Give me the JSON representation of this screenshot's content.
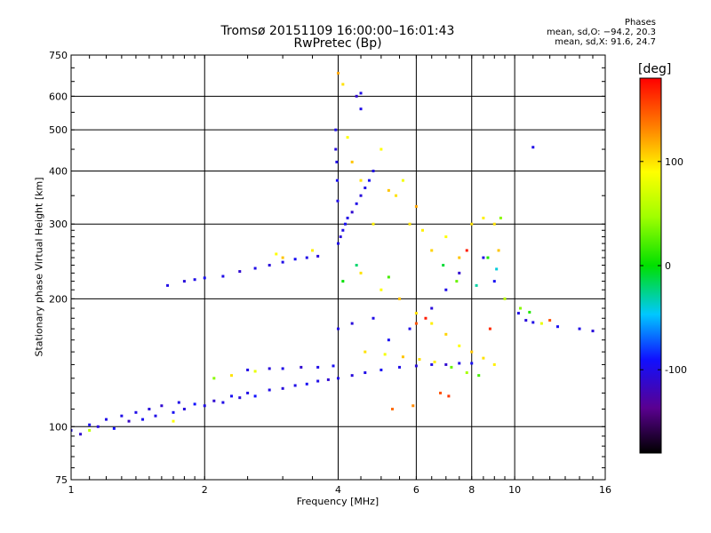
{
  "title_line1": "Tromsø 20151109 16:00:00–16:01:43",
  "title_line2": "RwPretec (Bp)",
  "phase_box": {
    "heading": "Phases",
    "line_o": "mean, sd,O: −94.2, 20.3",
    "line_x": "mean, sd,X:  91.6, 24.7"
  },
  "colorbar": {
    "unit": "[deg]",
    "ticks": [
      {
        "value": 100,
        "label": "100"
      },
      {
        "value": 0,
        "label": "0"
      },
      {
        "value": -100,
        "label": "-100"
      }
    ],
    "range": [
      -180,
      180
    ]
  },
  "chart_data": {
    "type": "scatter",
    "title": "Tromsø 20151109 16:00:00–16:01:43",
    "subtitle": "RwPretec (Bp)",
    "xlabel": "Frequency [MHz]",
    "ylabel": "Stationary phase Virtual Height [km]",
    "x_scale": "log",
    "y_scale": "log",
    "xlim": [
      1,
      16
    ],
    "ylim": [
      75,
      750
    ],
    "xticks": [
      1,
      2,
      4,
      6,
      8,
      10,
      16
    ],
    "xtick_labels": [
      "1",
      "2",
      "4",
      "6",
      "8",
      "10",
      "16"
    ],
    "yticks": [
      75,
      100,
      200,
      300,
      400,
      500,
      600,
      750
    ],
    "ytick_labels": [
      "75",
      "100",
      "200",
      "300",
      "400",
      "500",
      "600",
      "750"
    ],
    "x_gridlines": [
      2,
      4,
      6,
      8,
      10
    ],
    "y_gridlines": [
      100,
      200,
      300,
      400,
      500,
      600
    ],
    "color_variable": "phase [deg]",
    "color_range": [
      -180,
      180
    ],
    "series": [
      {
        "mode": "O",
        "mean_phase": -94.2,
        "points": [
          [
            1.0,
            98,
            -100
          ],
          [
            1.05,
            96,
            -110
          ],
          [
            1.1,
            101,
            -95
          ],
          [
            1.15,
            100,
            -105
          ],
          [
            1.2,
            104,
            -100
          ],
          [
            1.25,
            99,
            -90
          ],
          [
            1.3,
            106,
            -100
          ],
          [
            1.35,
            103,
            -115
          ],
          [
            1.4,
            108,
            -100
          ],
          [
            1.45,
            104,
            -95
          ],
          [
            1.5,
            110,
            -105
          ],
          [
            1.55,
            106,
            -100
          ],
          [
            1.6,
            112,
            -110
          ],
          [
            1.7,
            108,
            -95
          ],
          [
            1.75,
            114,
            -100
          ],
          [
            1.8,
            110,
            -105
          ],
          [
            1.9,
            113,
            -90
          ],
          [
            2.0,
            112,
            -100
          ],
          [
            2.1,
            115,
            -110
          ],
          [
            2.2,
            114,
            -100
          ],
          [
            2.3,
            118,
            -95
          ],
          [
            2.4,
            117,
            -105
          ],
          [
            2.5,
            120,
            -100
          ],
          [
            2.6,
            118,
            -90
          ],
          [
            2.8,
            122,
            -100
          ],
          [
            3.0,
            123,
            -105
          ],
          [
            3.2,
            125,
            -100
          ],
          [
            3.4,
            126,
            -95
          ],
          [
            3.6,
            128,
            -100
          ],
          [
            3.8,
            129,
            -110
          ],
          [
            4.0,
            130,
            -100
          ],
          [
            4.3,
            132,
            -105
          ],
          [
            4.6,
            134,
            -100
          ],
          [
            5.0,
            136,
            -95
          ],
          [
            5.5,
            138,
            -100
          ],
          [
            6.0,
            139,
            -105
          ],
          [
            6.5,
            140,
            -100
          ],
          [
            7.0,
            140,
            -110
          ],
          [
            7.5,
            141,
            -100
          ],
          [
            8.0,
            141,
            -95
          ],
          [
            2.5,
            136,
            -100
          ],
          [
            2.8,
            137,
            -105
          ],
          [
            3.0,
            137,
            -100
          ],
          [
            3.3,
            138,
            -110
          ],
          [
            3.6,
            138,
            -100
          ],
          [
            3.9,
            139,
            -95
          ],
          [
            1.65,
            215,
            -100
          ],
          [
            1.8,
            220,
            -105
          ],
          [
            1.9,
            222,
            -100
          ],
          [
            2.0,
            224,
            -95
          ],
          [
            2.2,
            226,
            -100
          ],
          [
            2.4,
            232,
            -110
          ],
          [
            2.6,
            236,
            -100
          ],
          [
            2.8,
            240,
            -105
          ],
          [
            3.0,
            244,
            -100
          ],
          [
            3.2,
            248,
            -95
          ],
          [
            3.4,
            250,
            -100
          ],
          [
            3.6,
            252,
            -105
          ],
          [
            4.0,
            270,
            -100
          ],
          [
            4.05,
            280,
            -105
          ],
          [
            4.1,
            290,
            -100
          ],
          [
            4.15,
            300,
            -95
          ],
          [
            4.2,
            310,
            -100
          ],
          [
            4.3,
            320,
            -110
          ],
          [
            4.4,
            335,
            -100
          ],
          [
            4.5,
            350,
            -105
          ],
          [
            4.6,
            365,
            -100
          ],
          [
            4.7,
            380,
            -95
          ],
          [
            4.8,
            400,
            -100
          ],
          [
            4.5,
            610,
            -100
          ],
          [
            4.4,
            600,
            -110
          ],
          [
            4.5,
            560,
            -100
          ],
          [
            3.95,
            500,
            -100
          ],
          [
            3.95,
            450,
            -105
          ],
          [
            3.97,
            420,
            -100
          ],
          [
            3.98,
            380,
            -95
          ],
          [
            3.99,
            340,
            -100
          ],
          [
            4.0,
            170,
            -100
          ],
          [
            4.3,
            175,
            -105
          ],
          [
            4.8,
            180,
            -100
          ],
          [
            5.2,
            160,
            -95
          ],
          [
            5.8,
            170,
            -100
          ],
          [
            6.5,
            190,
            -105
          ],
          [
            7.0,
            210,
            -100
          ],
          [
            7.5,
            230,
            -110
          ],
          [
            8.5,
            250,
            -100
          ],
          [
            9.0,
            220,
            -95
          ],
          [
            10.2,
            185,
            -100
          ],
          [
            10.6,
            178,
            -105
          ],
          [
            11.0,
            176,
            -100
          ],
          [
            12.5,
            172,
            -95
          ],
          [
            14.0,
            170,
            -100
          ],
          [
            15.0,
            168,
            -105
          ],
          [
            11.0,
            455,
            -100
          ]
        ]
      },
      {
        "mode": "X",
        "mean_phase": 91.6,
        "points": [
          [
            1.1,
            98,
            60
          ],
          [
            1.7,
            103,
            90
          ],
          [
            2.1,
            130,
            40
          ],
          [
            2.3,
            132,
            100
          ],
          [
            2.6,
            135,
            80
          ],
          [
            2.9,
            255,
            90
          ],
          [
            3.0,
            250,
            110
          ],
          [
            3.5,
            260,
            95
          ],
          [
            4.0,
            680,
            120
          ],
          [
            4.1,
            640,
            100
          ],
          [
            4.2,
            480,
            90
          ],
          [
            4.3,
            420,
            110
          ],
          [
            4.5,
            380,
            100
          ],
          [
            4.8,
            300,
            95
          ],
          [
            5.0,
            450,
            90
          ],
          [
            5.2,
            360,
            110
          ],
          [
            5.4,
            350,
            100
          ],
          [
            5.6,
            380,
            85
          ],
          [
            5.8,
            300,
            100
          ],
          [
            6.0,
            330,
            120
          ],
          [
            6.2,
            290,
            95
          ],
          [
            6.5,
            260,
            105
          ],
          [
            7.0,
            280,
            90
          ],
          [
            7.5,
            250,
            110
          ],
          [
            8.0,
            300,
            100
          ],
          [
            8.5,
            310,
            95
          ],
          [
            9.0,
            300,
            100
          ],
          [
            9.2,
            260,
            110
          ],
          [
            4.5,
            230,
            100
          ],
          [
            5.0,
            210,
            90
          ],
          [
            5.5,
            200,
            110
          ],
          [
            6.0,
            185,
            100
          ],
          [
            6.5,
            175,
            95
          ],
          [
            7.0,
            165,
            105
          ],
          [
            7.5,
            155,
            90
          ],
          [
            8.0,
            150,
            110
          ],
          [
            8.5,
            145,
            100
          ],
          [
            9.0,
            140,
            95
          ],
          [
            4.6,
            150,
            100
          ],
          [
            5.1,
            148,
            85
          ],
          [
            5.6,
            146,
            110
          ],
          [
            6.1,
            144,
            100
          ],
          [
            6.6,
            142,
            95
          ],
          [
            7.2,
            138,
            30
          ],
          [
            7.8,
            134,
            50
          ],
          [
            8.3,
            132,
            20
          ],
          [
            6.8,
            120,
            150
          ],
          [
            7.1,
            118,
            160
          ],
          [
            5.3,
            110,
            140
          ],
          [
            5.9,
            112,
            130
          ],
          [
            9.5,
            200,
            60
          ],
          [
            10.3,
            190,
            40
          ],
          [
            10.8,
            186,
            10
          ],
          [
            11.5,
            175,
            80
          ],
          [
            12.0,
            178,
            150
          ],
          [
            6.0,
            175,
            150
          ],
          [
            6.3,
            180,
            170
          ],
          [
            8.8,
            170,
            165
          ],
          [
            9.3,
            310,
            40
          ],
          [
            7.8,
            260,
            170
          ],
          [
            4.1,
            220,
            0
          ],
          [
            4.4,
            240,
            -20
          ],
          [
            5.2,
            225,
            20
          ],
          [
            6.9,
            240,
            -10
          ],
          [
            7.4,
            220,
            30
          ],
          [
            8.2,
            215,
            -30
          ],
          [
            8.7,
            250,
            10
          ],
          [
            9.1,
            235,
            -40
          ]
        ]
      }
    ]
  }
}
